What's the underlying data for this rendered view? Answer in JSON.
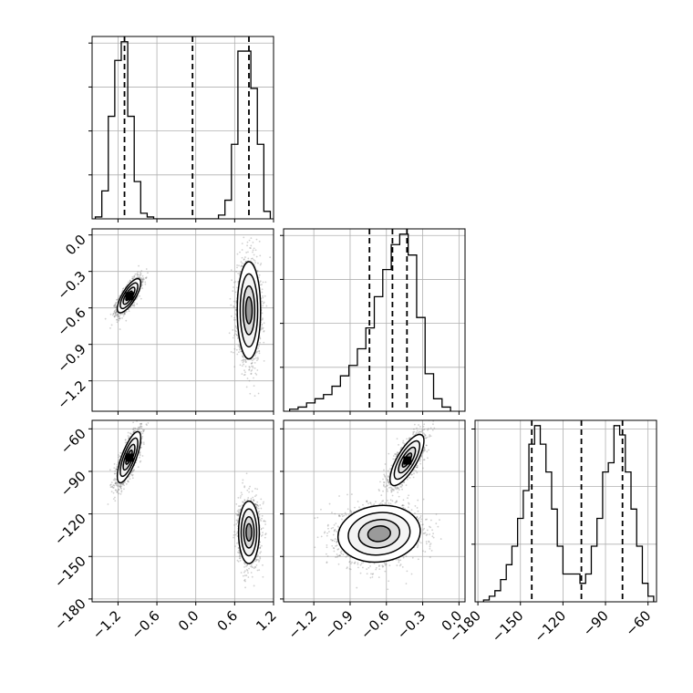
{
  "chart_data": {
    "type": "corner",
    "parameters": [
      {
        "id": "p1",
        "range": [
          -1.6,
          1.2
        ],
        "ticks": [
          "−1.2",
          "−0.6",
          "0.0",
          "0.6",
          "1.2"
        ],
        "tick_values": [
          -1.2,
          -0.6,
          0.0,
          0.6,
          1.2
        ],
        "quantiles": [
          -1.1,
          -0.05,
          0.82
        ]
      },
      {
        "id": "p2",
        "range": [
          -1.45,
          0.05
        ],
        "ticks": [
          "−1.2",
          "−0.9",
          "−0.6",
          "−0.3",
          "0.0"
        ],
        "tick_values": [
          -1.2,
          -0.9,
          -0.6,
          -0.3,
          0.0
        ],
        "quantiles": [
          -0.74,
          -0.55,
          -0.43
        ]
      },
      {
        "id": "p3",
        "range": [
          -182,
          -54
        ],
        "ticks": [
          "−180",
          "−150",
          "−120",
          "−90",
          "−60"
        ],
        "tick_values": [
          -180,
          -150,
          -120,
          -90,
          -60
        ],
        "quantiles": [
          -142,
          -107,
          -78
        ]
      }
    ],
    "histograms": [
      {
        "param": "p1",
        "edges": [
          -1.55,
          -1.45,
          -1.35,
          -1.25,
          -1.15,
          -1.05,
          -0.95,
          -0.85,
          -0.75,
          -0.65,
          -0.55,
          0.35,
          0.45,
          0.55,
          0.65,
          0.75,
          0.85,
          0.95,
          1.05,
          1.15
        ],
        "counts": [
          1,
          15,
          55,
          85,
          95,
          55,
          20,
          3,
          1,
          0,
          0,
          2,
          10,
          40,
          90,
          90,
          70,
          40,
          4
        ]
      },
      {
        "param": "p2",
        "edges": [
          -1.4,
          -1.33,
          -1.26,
          -1.19,
          -1.12,
          -1.05,
          -0.98,
          -0.91,
          -0.84,
          -0.77,
          -0.7,
          -0.63,
          -0.56,
          -0.49,
          -0.42,
          -0.35,
          -0.28,
          -0.21,
          -0.14,
          -0.07
        ],
        "counts": [
          1,
          2,
          4,
          6,
          8,
          12,
          17,
          22,
          30,
          40,
          55,
          68,
          80,
          85,
          75,
          45,
          18,
          6,
          2
        ]
      },
      {
        "param": "p3",
        "edges": [
          -176,
          -172,
          -168,
          -164,
          -160,
          -156,
          -152,
          -148,
          -144,
          -140,
          -136,
          -132,
          -128,
          -124,
          -120,
          -116,
          -112,
          -108,
          -104,
          -100,
          -96,
          -92,
          -88,
          -84,
          -80,
          -76,
          -72,
          -68,
          -64,
          -60,
          -56
        ],
        "counts": [
          1,
          3,
          6,
          12,
          20,
          30,
          45,
          60,
          85,
          95,
          85,
          70,
          50,
          30,
          15,
          15,
          15,
          10,
          15,
          30,
          45,
          70,
          75,
          95,
          90,
          70,
          50,
          30,
          10,
          3
        ]
      }
    ],
    "pairs": [
      {
        "x": "p1",
        "y": "p2",
        "clusters": [
          {
            "cx": -1.03,
            "cy": -0.5,
            "sx": 0.09,
            "sy": 0.07,
            "rho": 0.75,
            "n": 1700
          },
          {
            "cx": 0.82,
            "cy": -0.62,
            "sx": 0.09,
            "sy": 0.2,
            "rho": 0.0,
            "n": 1700
          }
        ]
      },
      {
        "x": "p1",
        "y": "p3",
        "clusters": [
          {
            "cx": -1.03,
            "cy": -80,
            "sx": 0.09,
            "sy": 9,
            "rho": 0.75,
            "n": 1700
          },
          {
            "cx": 0.82,
            "cy": -133,
            "sx": 0.08,
            "sy": 11,
            "rho": 0.0,
            "n": 1700
          }
        ]
      },
      {
        "x": "p2",
        "y": "p3",
        "clusters": [
          {
            "cx": -0.43,
            "cy": -82,
            "sx": 0.07,
            "sy": 9,
            "rho": 0.75,
            "n": 1700
          },
          {
            "cx": -0.66,
            "cy": -134,
            "sx": 0.17,
            "sy": 10,
            "rho": 0.1,
            "n": 1900
          }
        ]
      }
    ],
    "grid": true,
    "quantile_lines": "dashed",
    "colors": {
      "points": "#7a7a7a",
      "density_dark": "#000000",
      "density_light": "#ffffff"
    }
  }
}
